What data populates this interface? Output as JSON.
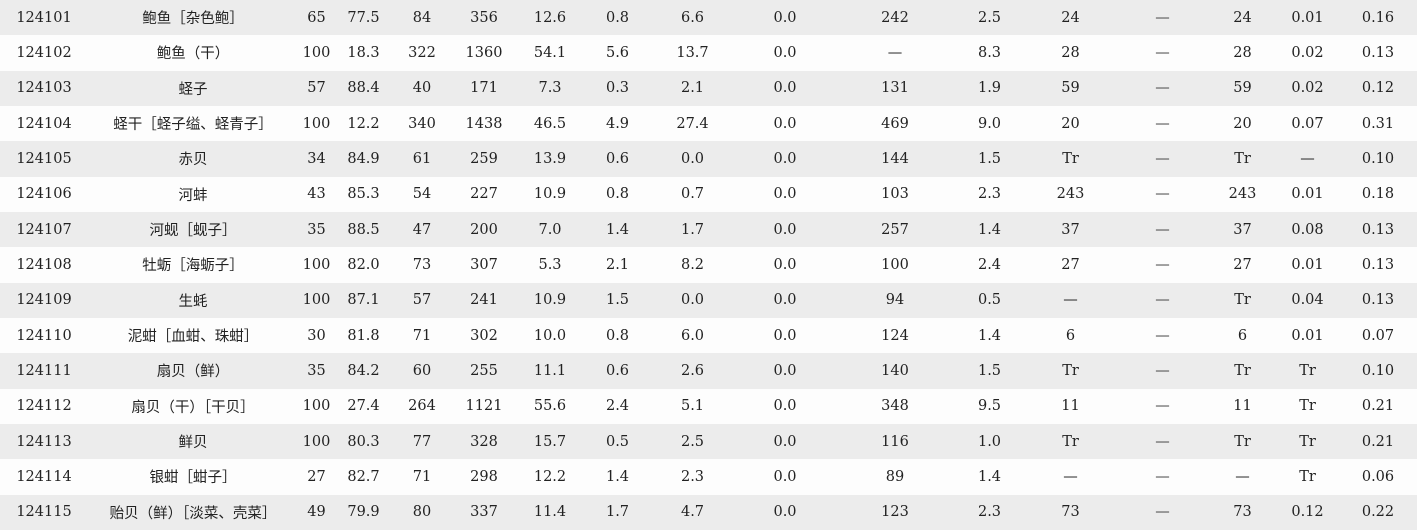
{
  "rows": [
    {
      "code": "124101",
      "name": "鲍鱼［杂色鲍］",
      "edible": "65",
      "water": "77.5",
      "kcal": "84",
      "kj": "356",
      "protein": "12.6",
      "fat": "0.8",
      "carb": "6.6",
      "fiber": "0.0",
      "chol": "242",
      "ash": "2.5",
      "vitA": "24",
      "carotene": "—",
      "retinol": "24",
      "thiamin": "0.01",
      "ribo": "0.16"
    },
    {
      "code": "124102",
      "name": "鲍鱼（干）",
      "edible": "100",
      "water": "18.3",
      "kcal": "322",
      "kj": "1360",
      "protein": "54.1",
      "fat": "5.6",
      "carb": "13.7",
      "fiber": "0.0",
      "chol": "—",
      "ash": "8.3",
      "vitA": "28",
      "carotene": "—",
      "retinol": "28",
      "thiamin": "0.02",
      "ribo": "0.13"
    },
    {
      "code": "124103",
      "name": "蛏子",
      "edible": "57",
      "water": "88.4",
      "kcal": "40",
      "kj": "171",
      "protein": "7.3",
      "fat": "0.3",
      "carb": "2.1",
      "fiber": "0.0",
      "chol": "131",
      "ash": "1.9",
      "vitA": "59",
      "carotene": "—",
      "retinol": "59",
      "thiamin": "0.02",
      "ribo": "0.12"
    },
    {
      "code": "124104",
      "name": "蛏干［蛏子缢、蛏青子］",
      "edible": "100",
      "water": "12.2",
      "kcal": "340",
      "kj": "1438",
      "protein": "46.5",
      "fat": "4.9",
      "carb": "27.4",
      "fiber": "0.0",
      "chol": "469",
      "ash": "9.0",
      "vitA": "20",
      "carotene": "—",
      "retinol": "20",
      "thiamin": "0.07",
      "ribo": "0.31"
    },
    {
      "code": "124105",
      "name": "赤贝",
      "edible": "34",
      "water": "84.9",
      "kcal": "61",
      "kj": "259",
      "protein": "13.9",
      "fat": "0.6",
      "carb": "0.0",
      "fiber": "0.0",
      "chol": "144",
      "ash": "1.5",
      "vitA": "Tr",
      "carotene": "—",
      "retinol": "Tr",
      "thiamin": "—",
      "ribo": "0.10"
    },
    {
      "code": "124106",
      "name": "河蚌",
      "edible": "43",
      "water": "85.3",
      "kcal": "54",
      "kj": "227",
      "protein": "10.9",
      "fat": "0.8",
      "carb": "0.7",
      "fiber": "0.0",
      "chol": "103",
      "ash": "2.3",
      "vitA": "243",
      "carotene": "—",
      "retinol": "243",
      "thiamin": "0.01",
      "ribo": "0.18"
    },
    {
      "code": "124107",
      "name": "河蚬［蚬子］",
      "edible": "35",
      "water": "88.5",
      "kcal": "47",
      "kj": "200",
      "protein": "7.0",
      "fat": "1.4",
      "carb": "1.7",
      "fiber": "0.0",
      "chol": "257",
      "ash": "1.4",
      "vitA": "37",
      "carotene": "—",
      "retinol": "37",
      "thiamin": "0.08",
      "ribo": "0.13"
    },
    {
      "code": "124108",
      "name": "牡蛎［海蛎子］",
      "edible": "100",
      "water": "82.0",
      "kcal": "73",
      "kj": "307",
      "protein": "5.3",
      "fat": "2.1",
      "carb": "8.2",
      "fiber": "0.0",
      "chol": "100",
      "ash": "2.4",
      "vitA": "27",
      "carotene": "—",
      "retinol": "27",
      "thiamin": "0.01",
      "ribo": "0.13"
    },
    {
      "code": "124109",
      "name": "生蚝",
      "edible": "100",
      "water": "87.1",
      "kcal": "57",
      "kj": "241",
      "protein": "10.9",
      "fat": "1.5",
      "carb": "0.0",
      "fiber": "0.0",
      "chol": "94",
      "ash": "0.5",
      "vitA": "—",
      "carotene": "—",
      "retinol": "Tr",
      "thiamin": "0.04",
      "ribo": "0.13"
    },
    {
      "code": "124110",
      "name": "泥蚶［血蚶、珠蚶］",
      "edible": "30",
      "water": "81.8",
      "kcal": "71",
      "kj": "302",
      "protein": "10.0",
      "fat": "0.8",
      "carb": "6.0",
      "fiber": "0.0",
      "chol": "124",
      "ash": "1.4",
      "vitA": "6",
      "carotene": "—",
      "retinol": "6",
      "thiamin": "0.01",
      "ribo": "0.07"
    },
    {
      "code": "124111",
      "name": "扇贝（鲜）",
      "edible": "35",
      "water": "84.2",
      "kcal": "60",
      "kj": "255",
      "protein": "11.1",
      "fat": "0.6",
      "carb": "2.6",
      "fiber": "0.0",
      "chol": "140",
      "ash": "1.5",
      "vitA": "Tr",
      "carotene": "—",
      "retinol": "Tr",
      "thiamin": "Tr",
      "ribo": "0.10"
    },
    {
      "code": "124112",
      "name": "扇贝（干）［干贝］",
      "edible": "100",
      "water": "27.4",
      "kcal": "264",
      "kj": "1121",
      "protein": "55.6",
      "fat": "2.4",
      "carb": "5.1",
      "fiber": "0.0",
      "chol": "348",
      "ash": "9.5",
      "vitA": "11",
      "carotene": "—",
      "retinol": "11",
      "thiamin": "Tr",
      "ribo": "0.21"
    },
    {
      "code": "124113",
      "name": "鲜贝",
      "edible": "100",
      "water": "80.3",
      "kcal": "77",
      "kj": "328",
      "protein": "15.7",
      "fat": "0.5",
      "carb": "2.5",
      "fiber": "0.0",
      "chol": "116",
      "ash": "1.0",
      "vitA": "Tr",
      "carotene": "—",
      "retinol": "Tr",
      "thiamin": "Tr",
      "ribo": "0.21"
    },
    {
      "code": "124114",
      "name": "银蚶［蚶子］",
      "edible": "27",
      "water": "82.7",
      "kcal": "71",
      "kj": "298",
      "protein": "12.2",
      "fat": "1.4",
      "carb": "2.3",
      "fiber": "0.0",
      "chol": "89",
      "ash": "1.4",
      "vitA": "—",
      "carotene": "—",
      "retinol": "—",
      "thiamin": "Tr",
      "ribo": "0.06"
    },
    {
      "code": "124115",
      "name": "贻贝（鲜）［淡菜、壳菜］",
      "edible": "49",
      "water": "79.9",
      "kcal": "80",
      "kj": "337",
      "protein": "11.4",
      "fat": "1.7",
      "carb": "4.7",
      "fiber": "0.0",
      "chol": "123",
      "ash": "2.3",
      "vitA": "73",
      "carotene": "—",
      "retinol": "73",
      "thiamin": "0.12",
      "ribo": "0.22"
    }
  ]
}
